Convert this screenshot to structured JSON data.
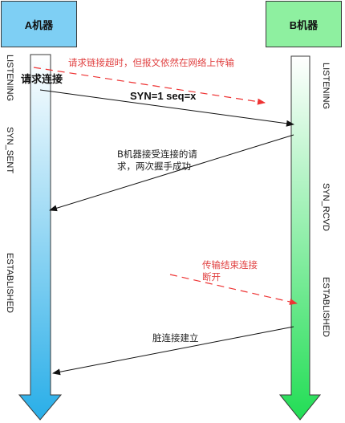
{
  "machine_a": {
    "title": "A机器",
    "states": [
      "LISTENING",
      "SYN_SENT",
      "ESTABLISHED"
    ]
  },
  "machine_b": {
    "title": "B机器",
    "states": [
      "LISTENING",
      "SYN_RCVD",
      "ESTABLISHED"
    ]
  },
  "messages": {
    "request_label": "请求连接",
    "syn_label": "SYN=1 seq=x",
    "delayed_note": "请求链接超时，但报文依然在网络上传输",
    "b_accept_line1": "B机器接受连接的请",
    "b_accept_line2": "求，两次握手成功",
    "transfer_end_line1": "传输结束连接",
    "transfer_end_line2": "断开",
    "dirty_connection": "脏连接建立"
  },
  "colors": {
    "a_box": "#7ecff4",
    "b_box": "#8ef0a0",
    "a_bar_top": "#ffffff",
    "a_bar_bottom": "#29aee8",
    "b_bar_top": "#ffffff",
    "b_bar_bottom": "#22dd55",
    "dashed_red": "#ee3333",
    "note_red": "#e04040"
  }
}
